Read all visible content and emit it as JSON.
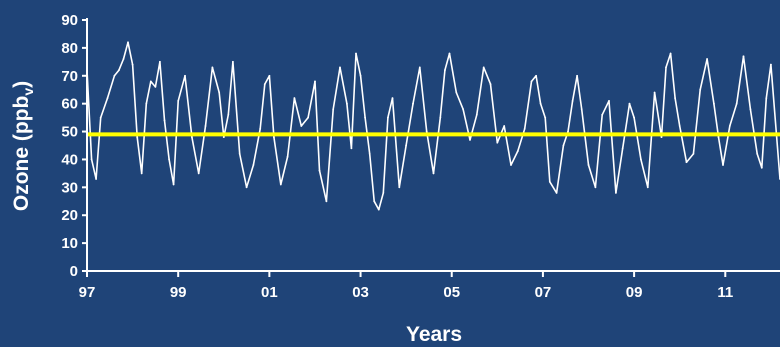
{
  "chart_data": {
    "type": "line",
    "xlabel": "Years",
    "ylabel": "Ozone (ppb",
    "ylabel_subscript": "v",
    "ylabel_close": ")",
    "xlim": [
      1997,
      2012.2
    ],
    "ylim": [
      0,
      90
    ],
    "x_ticks": [
      1997,
      1999,
      2001,
      2003,
      2005,
      2007,
      2009,
      2011
    ],
    "x_tick_labels": [
      "97",
      "99",
      "01",
      "03",
      "05",
      "07",
      "09",
      "11"
    ],
    "y_ticks": [
      0,
      10,
      20,
      30,
      40,
      50,
      60,
      70,
      80,
      90
    ],
    "y_tick_labels": [
      "0",
      "10",
      "20",
      "30",
      "40",
      "50",
      "60",
      "70",
      "80",
      "90"
    ],
    "grid": false,
    "colors": {
      "background": "#1f4478",
      "series": "#ffffff",
      "reference": "#ffff00",
      "axis": "#ffffff"
    },
    "series": [
      {
        "x": [
          1997.0,
          1997.1,
          1997.2,
          1997.3,
          1997.45,
          1997.6,
          1997.7,
          1997.8,
          1997.9,
          1998.0,
          1998.1,
          1998.2,
          1998.3,
          1998.4,
          1998.5,
          1998.6,
          1998.7,
          1998.8,
          1998.9,
          1999.0,
          1999.15,
          1999.3,
          1999.45,
          1999.6,
          1999.75,
          1999.9,
          2000.0,
          2000.1,
          2000.2,
          2000.35,
          2000.5,
          2000.65,
          2000.8,
          2000.9,
          2001.0,
          2001.1,
          2001.25,
          2001.4,
          2001.55,
          2001.7,
          2001.85,
          2002.0,
          2002.1,
          2002.25,
          2002.4,
          2002.55,
          2002.7,
          2002.8,
          2002.9,
          2003.0,
          2003.1,
          2003.2,
          2003.3,
          2003.4,
          2003.5,
          2003.6,
          2003.7,
          2003.85,
          2004.0,
          2004.15,
          2004.3,
          2004.45,
          2004.6,
          2004.75,
          2004.85,
          2004.95,
          2005.1,
          2005.25,
          2005.4,
          2005.55,
          2005.7,
          2005.85,
          2006.0,
          2006.15,
          2006.3,
          2006.45,
          2006.6,
          2006.75,
          2006.85,
          2006.95,
          2007.05,
          2007.15,
          2007.3,
          2007.45,
          2007.55,
          2007.65,
          2007.75,
          2007.85,
          2008.0,
          2008.15,
          2008.3,
          2008.45,
          2008.6,
          2008.75,
          2008.9,
          2009.0,
          2009.15,
          2009.3,
          2009.45,
          2009.6,
          2009.7,
          2009.8,
          2009.9,
          2010.0,
          2010.15,
          2010.3,
          2010.45,
          2010.6,
          2010.75,
          2010.85,
          2010.95,
          2011.1,
          2011.25,
          2011.4,
          2011.55,
          2011.7,
          2011.8,
          2011.9,
          2012.0,
          2012.2
        ],
        "y": [
          72,
          40,
          33,
          55,
          62,
          70,
          72,
          76,
          82,
          74,
          48,
          35,
          60,
          68,
          66,
          75,
          54,
          40,
          31,
          61,
          70,
          48,
          35,
          52,
          73,
          64,
          48,
          56,
          75,
          42,
          30,
          38,
          51,
          67,
          70,
          48,
          31,
          41,
          62,
          52,
          55,
          68,
          36,
          25,
          58,
          73,
          60,
          44,
          78,
          70,
          55,
          42,
          25,
          22,
          28,
          55,
          62,
          30,
          45,
          60,
          73,
          50,
          35,
          55,
          72,
          78,
          64,
          58,
          47,
          56,
          73,
          67,
          46,
          52,
          38,
          43,
          51,
          68,
          70,
          60,
          55,
          32,
          28,
          45,
          50,
          61,
          70,
          58,
          38,
          30,
          56,
          61,
          28,
          44,
          60,
          55,
          40,
          30,
          64,
          48,
          73,
          78,
          62,
          52,
          39,
          42,
          65,
          76,
          60,
          48,
          38,
          52,
          60,
          77,
          58,
          42,
          37,
          62,
          74,
          33
        ]
      }
    ],
    "reference_line": {
      "y": 49
    }
  }
}
